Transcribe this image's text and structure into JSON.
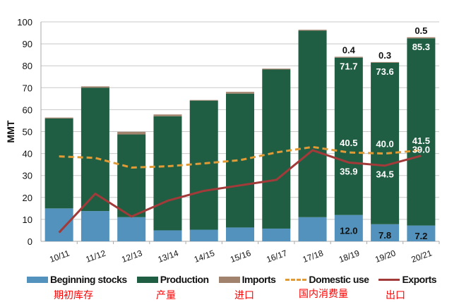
{
  "chart_data": {
    "type": "bar",
    "stacked": true,
    "ylabel": "MMT",
    "ylim": [
      0,
      100
    ],
    "yticks": [
      0,
      10,
      20,
      30,
      40,
      50,
      60,
      70,
      80,
      90,
      100
    ],
    "grid": true,
    "legend_position": "bottom",
    "categories": [
      "10/11",
      "11/12",
      "12/13",
      "13/14",
      "14/15",
      "15/16",
      "16/17",
      "17/18",
      "18/19",
      "19/20",
      "20/21"
    ],
    "series": [
      {
        "name": "Beginning stocks",
        "type": "bar",
        "color": "#5292bc",
        "values": [
          15.0,
          13.8,
          11.0,
          5.0,
          5.3,
          6.3,
          5.8,
          11.0,
          12.0,
          7.8,
          7.2
        ]
      },
      {
        "name": "Production",
        "type": "bar",
        "color": "#1f5e43",
        "values": [
          41.0,
          56.2,
          37.7,
          52.0,
          58.8,
          61.0,
          72.5,
          85.0,
          71.7,
          73.6,
          85.3
        ]
      },
      {
        "name": "Imports",
        "type": "bar",
        "color": "#a0826d",
        "values": [
          0.4,
          0.6,
          1.2,
          0.8,
          0.3,
          0.8,
          0.4,
          0.4,
          0.4,
          0.3,
          0.5
        ]
      },
      {
        "name": "Domestic use",
        "type": "line",
        "style": "dashed",
        "color": "#e09a36",
        "values": [
          38.7,
          38.0,
          33.6,
          34.2,
          35.5,
          37.0,
          40.5,
          43.0,
          40.5,
          40.0,
          41.5
        ]
      },
      {
        "name": "Exports",
        "type": "line",
        "color": "#a23a3a",
        "values": [
          4.0,
          21.7,
          11.3,
          18.5,
          23.0,
          25.5,
          28.0,
          41.5,
          35.9,
          34.5,
          39.0
        ]
      }
    ],
    "data_labels": [
      {
        "category": "18/19",
        "imports": "0.4",
        "production": "71.7",
        "domestic": "40.5",
        "exports": "35.9",
        "stocks": "12.0"
      },
      {
        "category": "19/20",
        "imports": "0.3",
        "production": "73.6",
        "domestic": "40.0",
        "exports": "34.5",
        "stocks": "7.8"
      },
      {
        "category": "20/21",
        "imports": "0.5",
        "production": "85.3",
        "domestic": "41.5",
        "exports": "39.0",
        "stocks": "7.2"
      }
    ],
    "legend_translations": [
      "期初库存",
      "产量",
      "进口",
      "国内消费量",
      "出口"
    ]
  }
}
